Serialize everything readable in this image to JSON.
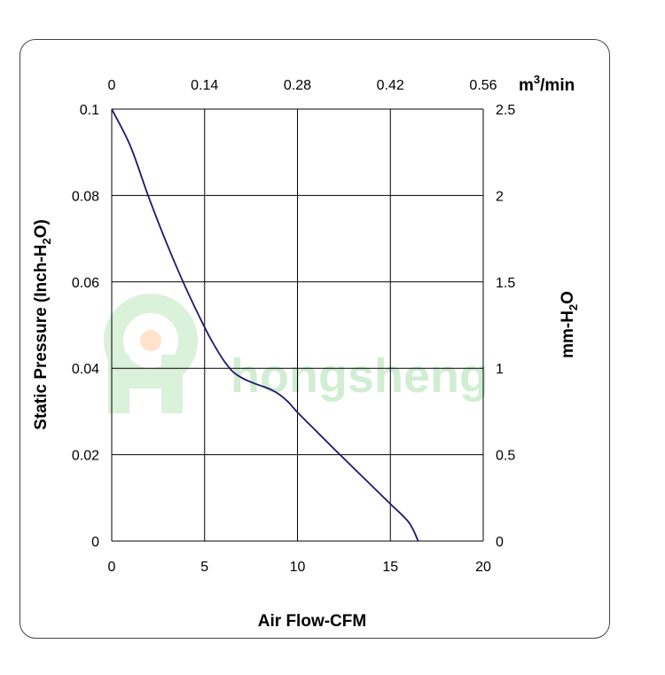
{
  "watermark": {
    "text": "hongsheng",
    "color": "#cdeccf"
  },
  "chart_data": {
    "type": "line",
    "xlabel": "Air Flow-CFM",
    "ylabel": {
      "main": "Static Pressure (Inch-H",
      "sub": "2",
      "tail": "O)"
    },
    "y2label": {
      "main": "mm-H",
      "sub": "2",
      "tail": "O"
    },
    "x2label": {
      "main": "m",
      "sup": "3",
      "tail": "/min"
    },
    "xlim": [
      0,
      20
    ],
    "ylim": [
      0,
      0.1
    ],
    "y2lim": [
      0,
      2.5
    ],
    "x_ticks": [
      "0",
      "5",
      "10",
      "15",
      "20"
    ],
    "y_ticks": [
      "0",
      "0.02",
      "0.04",
      "0.06",
      "0.08",
      "0.1"
    ],
    "y2_ticks": [
      "0",
      "0.5",
      "1",
      "1.5",
      "2",
      "2.5"
    ],
    "x2_ticks": [
      "0",
      "0.14",
      "0.28",
      "0.42",
      "0.56"
    ],
    "grid": true,
    "line_color": "#1b1b6e",
    "series": [
      {
        "x": [
          0,
          1,
          2,
          3,
          4,
          5,
          5.5,
          6,
          6.5,
          7,
          7.5,
          8,
          8.5,
          9,
          9.5,
          10,
          11,
          12,
          13,
          14,
          15,
          16,
          16.5
        ],
        "y": [
          0.1,
          0.0915,
          0.0795,
          0.0685,
          0.0585,
          0.0495,
          0.0455,
          0.042,
          0.0393,
          0.0378,
          0.0368,
          0.036,
          0.0352,
          0.034,
          0.0322,
          0.0298,
          0.0255,
          0.0212,
          0.017,
          0.0128,
          0.0086,
          0.0043,
          0.0
        ]
      }
    ]
  }
}
